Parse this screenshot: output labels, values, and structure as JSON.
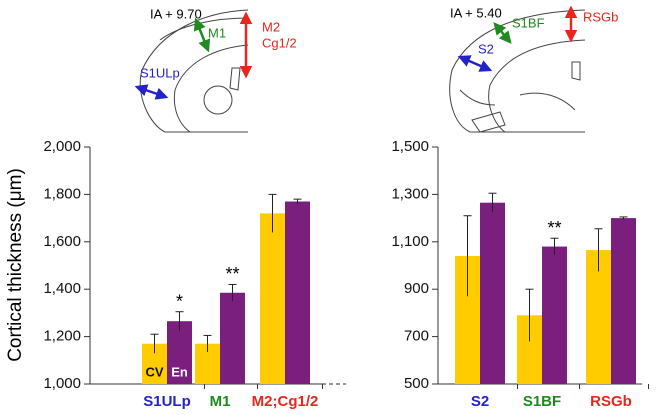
{
  "chart_data": [
    {
      "type": "bar",
      "ylabel": "Cortical thickness (μm)",
      "categories": [
        "S1ULp",
        "M1",
        "M2;Cg1/2"
      ],
      "category_colors": [
        "#2323c8",
        "#1f8a1f",
        "#e8261e"
      ],
      "series": [
        {
          "name": "CV",
          "color": "#ffcc00",
          "values": [
            1170,
            1170,
            1720
          ],
          "errors": [
            40,
            35,
            80
          ]
        },
        {
          "name": "En",
          "color": "#7b1f7f",
          "values": [
            1265,
            1385,
            1770
          ],
          "errors": [
            40,
            35,
            10
          ],
          "significance_labels": [
            "*",
            "**",
            null
          ]
        }
      ],
      "ylim": [
        1000,
        2000
      ],
      "yticks": [
        {
          "value": 1000,
          "label": "1,000"
        },
        {
          "value": 1200,
          "label": "1,200"
        },
        {
          "value": 1400,
          "label": "1,400"
        },
        {
          "value": 1600,
          "label": "1,600"
        },
        {
          "value": 1800,
          "label": "1,800"
        },
        {
          "value": 2000,
          "label": "2,000"
        }
      ],
      "diagram": {
        "section": "IA + 9.70",
        "regions": [
          {
            "lines": [
              "M1"
            ],
            "color": "#1f8a1f"
          },
          {
            "lines": [
              "M2",
              "Cg1/2"
            ],
            "color": "#e8261e"
          },
          {
            "lines": [
              "S1ULp"
            ],
            "color": "#2323c8"
          }
        ]
      }
    },
    {
      "type": "bar",
      "categories": [
        "S2",
        "S1BF",
        "RSGb"
      ],
      "category_colors": [
        "#2323c8",
        "#1f8a1f",
        "#e8261e"
      ],
      "series": [
        {
          "color": "#ffcc00",
          "values": [
            1040,
            790,
            1065
          ],
          "errors": [
            170,
            110,
            90
          ]
        },
        {
          "color": "#7b1f7f",
          "values": [
            1265,
            1080,
            1200
          ],
          "errors": [
            40,
            35,
            5
          ],
          "significance_labels": [
            null,
            "**",
            null
          ]
        }
      ],
      "ylim": [
        500,
        1500
      ],
      "yticks": [
        500,
        700,
        900,
        {
          "value": 1100,
          "label": "1,100"
        },
        {
          "value": 1300,
          "label": "1,300"
        },
        {
          "value": 1500,
          "label": "1,500"
        }
      ],
      "diagram": {
        "section": "IA + 5.40",
        "regions": [
          {
            "lines": [
              "S1BF"
            ],
            "color": "#1f8a1f"
          },
          {
            "lines": [
              "RSGb"
            ],
            "color": "#e8261e"
          },
          {
            "lines": [
              "S2"
            ],
            "color": "#2323c8"
          }
        ]
      }
    }
  ]
}
